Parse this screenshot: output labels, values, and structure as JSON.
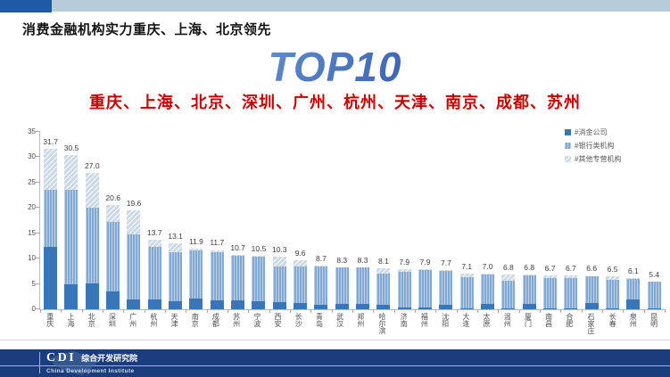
{
  "header": {
    "title": "消费金融机构实力重庆、上海、北京领先",
    "top10": "TOP10",
    "subtitle": "重庆、上海、北京、深圳、广州、杭州、天津、南京、成都、苏州"
  },
  "colors": {
    "accent_block": "#1d5ba6",
    "top_strip": "#b7ccd9",
    "subtitle_red": "#c00000",
    "footer_navy": "#1c3d7d"
  },
  "chart_data": {
    "type": "bar",
    "subtype": "stacked",
    "categories": [
      "重庆",
      "上海",
      "北京",
      "深圳",
      "广州",
      "杭州",
      "天津",
      "南京",
      "成都",
      "苏州",
      "宁波",
      "西安",
      "长沙",
      "青岛",
      "武汉",
      "郑州",
      "哈尔滨",
      "济南",
      "福州",
      "沈阳",
      "大连",
      "太原",
      "温州",
      "厦门",
      "南昌",
      "合肥",
      "石家庄",
      "长春",
      "泉州",
      "昆明"
    ],
    "totals": [
      31.7,
      30.5,
      27.0,
      20.6,
      19.6,
      13.7,
      13.1,
      11.9,
      11.7,
      10.7,
      10.5,
      10.3,
      9.6,
      8.7,
      8.3,
      8.3,
      8.1,
      7.9,
      7.9,
      7.7,
      7.1,
      7.0,
      6.8,
      6.8,
      6.7,
      6.7,
      6.6,
      6.5,
      6.1,
      5.4
    ],
    "series": [
      {
        "name": "#消金公司",
        "color": "#3a75b8",
        "values": [
          12.4,
          4.9,
          5.1,
          3.6,
          1.9,
          2.0,
          1.6,
          2.2,
          1.7,
          1.8,
          1.5,
          1.4,
          1.2,
          0.9,
          1.0,
          1.1,
          0.9,
          0.3,
          0.3,
          0.9,
          0.2,
          1.1,
          0.2,
          1.1,
          0.2,
          0.2,
          1.2,
          0.2,
          1.9,
          0.2
        ]
      },
      {
        "name": "#银行类机构",
        "color": "#84a9d3",
        "values": [
          11.1,
          18.6,
          14.9,
          13.7,
          12.9,
          10.4,
          9.7,
          9.4,
          9.6,
          8.7,
          8.8,
          7.0,
          7.2,
          7.6,
          7.2,
          7.1,
          6.1,
          7.1,
          7.5,
          6.7,
          6.1,
          5.8,
          5.4,
          5.5,
          6.0,
          6.0,
          5.3,
          5.6,
          4.1,
          5.2
        ]
      },
      {
        "name": "#其他专营机构",
        "color": "#ccd9e7",
        "values": [
          8.2,
          7.0,
          7.0,
          3.3,
          4.8,
          1.3,
          1.8,
          0.3,
          0.4,
          0.2,
          0.2,
          1.9,
          1.2,
          0.2,
          0.1,
          0.1,
          1.1,
          0.5,
          0.1,
          0.1,
          0.8,
          0.1,
          1.2,
          0.2,
          0.5,
          0.5,
          0.1,
          0.7,
          0.1,
          0.0
        ]
      }
    ],
    "ylim": [
      0,
      35
    ],
    "yticks": [
      0,
      5,
      10,
      15,
      20,
      25,
      30,
      35
    ],
    "grid": false,
    "legend_position": "top-right",
    "value_labels": true,
    "xlabel": "",
    "ylabel": ""
  },
  "footer": {
    "logo_acronym": "CDI",
    "logo_cn": "综合开发研究院",
    "logo_en": "China Development Institute"
  }
}
